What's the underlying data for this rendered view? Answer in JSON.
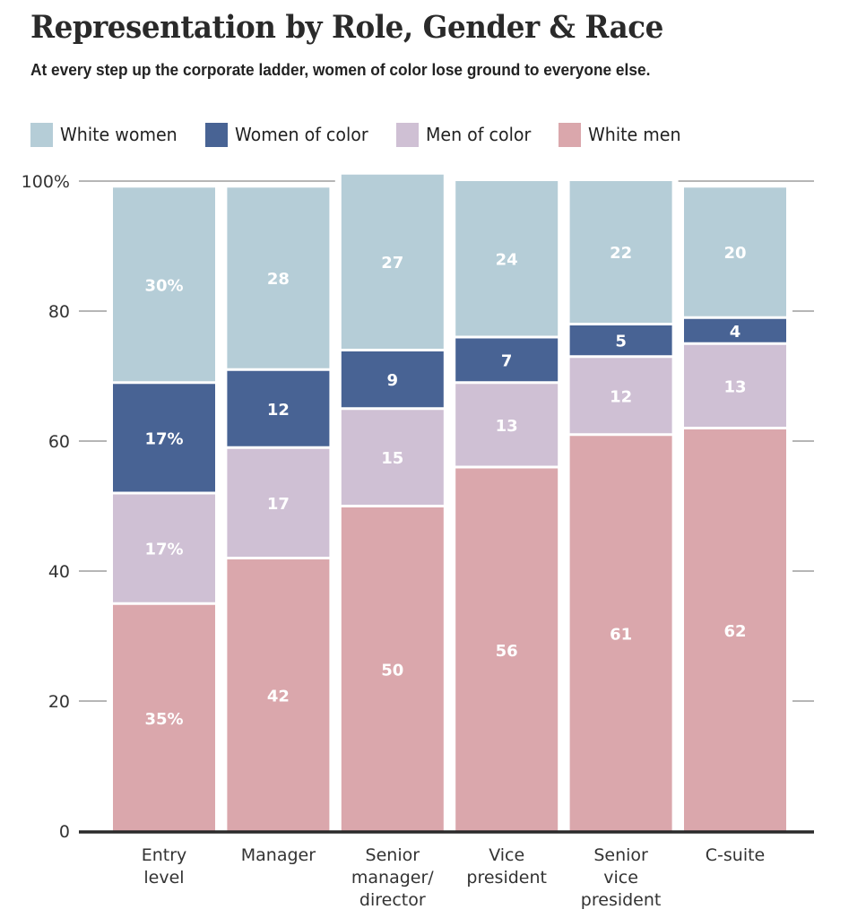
{
  "header": {
    "title": "Representation by Role, Gender & Race",
    "subtitle": "At every step up the corporate ladder, women of color lose ground to everyone else."
  },
  "legend": [
    {
      "label": "White women",
      "color": "#b5cdd7"
    },
    {
      "label": "Women of color",
      "color": "#486394"
    },
    {
      "label": "Men of color",
      "color": "#cfc0d4"
    },
    {
      "label": "White men",
      "color": "#daa7ac"
    }
  ],
  "chart_data": {
    "type": "bar",
    "stacked": true,
    "title": "Representation by Role, Gender & Race",
    "subtitle": "At every step up the corporate ladder, women of color lose ground to everyone else.",
    "xlabel": "",
    "ylabel": "",
    "ylim": [
      0,
      100
    ],
    "yticks": [
      0,
      20,
      40,
      60,
      80,
      100
    ],
    "ytick_labels": [
      "0",
      "20",
      "40",
      "60",
      "80",
      "100%"
    ],
    "grid": true,
    "legend_position": "top",
    "categories": [
      [
        "Entry",
        "level"
      ],
      [
        "Manager"
      ],
      [
        "Senior",
        "manager/",
        "director"
      ],
      [
        "Vice",
        "president"
      ],
      [
        "Senior",
        "vice",
        "president"
      ],
      [
        "C-suite"
      ]
    ],
    "series": [
      {
        "name": "White men",
        "color": "#daa7ac",
        "values": [
          35,
          42,
          50,
          56,
          61,
          62
        ],
        "labels": [
          "35%",
          "42",
          "50",
          "56",
          "61",
          "62"
        ]
      },
      {
        "name": "Men of color",
        "color": "#cfc0d4",
        "values": [
          17,
          17,
          15,
          13,
          12,
          13
        ],
        "labels": [
          "17%",
          "17",
          "15",
          "13",
          "12",
          "13"
        ]
      },
      {
        "name": "Women of color",
        "color": "#486394",
        "values": [
          17,
          12,
          9,
          7,
          5,
          4
        ],
        "labels": [
          "17%",
          "12",
          "9",
          "7",
          "5",
          "4"
        ]
      },
      {
        "name": "White women",
        "color": "#b5cdd7",
        "values": [
          30,
          28,
          27,
          24,
          22,
          20
        ],
        "labels": [
          "30%",
          "28",
          "27",
          "24",
          "22",
          "20"
        ]
      }
    ]
  }
}
